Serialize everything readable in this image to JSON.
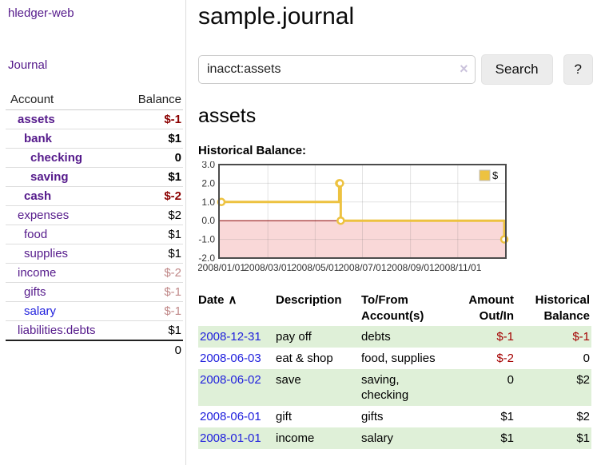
{
  "sidebar": {
    "brand": "hledger-web",
    "journal_link": "Journal",
    "accounts": {
      "header": {
        "account": "Account",
        "balance": "Balance"
      },
      "rows": [
        {
          "name": "assets",
          "indent": 1,
          "bold": true,
          "blue": false,
          "balance": "$-1",
          "neg": "strong",
          "last": false
        },
        {
          "name": "bank",
          "indent": 2,
          "bold": true,
          "blue": false,
          "balance": "$1",
          "neg": null,
          "last": false
        },
        {
          "name": "checking",
          "indent": 3,
          "bold": true,
          "blue": false,
          "balance": "0",
          "neg": null,
          "last": false
        },
        {
          "name": "saving",
          "indent": 3,
          "bold": true,
          "blue": false,
          "balance": "$1",
          "neg": null,
          "last": false
        },
        {
          "name": "cash",
          "indent": 2,
          "bold": true,
          "blue": false,
          "balance": "$-2",
          "neg": "strong",
          "last": false
        },
        {
          "name": "expenses",
          "indent": 1,
          "bold": false,
          "blue": false,
          "balance": "$2",
          "neg": null,
          "last": false
        },
        {
          "name": "food",
          "indent": 2,
          "bold": false,
          "blue": false,
          "balance": "$1",
          "neg": null,
          "last": false
        },
        {
          "name": "supplies",
          "indent": 2,
          "bold": false,
          "blue": false,
          "balance": "$1",
          "neg": null,
          "last": false
        },
        {
          "name": "income",
          "indent": 1,
          "bold": false,
          "blue": false,
          "balance": "$-2",
          "neg": "light",
          "last": false
        },
        {
          "name": "gifts",
          "indent": 2,
          "bold": false,
          "blue": false,
          "balance": "$-1",
          "neg": "light",
          "last": false
        },
        {
          "name": "salary",
          "indent": 2,
          "bold": false,
          "blue": true,
          "balance": "$-1",
          "neg": "light",
          "last": false
        },
        {
          "name": "liabilities:debts",
          "indent": 1,
          "bold": false,
          "blue": false,
          "balance": "$1",
          "neg": null,
          "last": true
        }
      ],
      "total": "0"
    }
  },
  "main": {
    "title": "sample.journal",
    "search": {
      "value": "inacct:assets",
      "clear_icon": "×",
      "button_label": "Search",
      "help_label": "?"
    },
    "account_heading": "assets",
    "chart_label": "Historical Balance:"
  },
  "register": {
    "headers": [
      {
        "line1": "Date",
        "line2": "",
        "sort_icon": "∧",
        "align": "left"
      },
      {
        "line1": "Description",
        "line2": "",
        "sort_icon": "",
        "align": "left"
      },
      {
        "line1": "To/From",
        "line2": "Account(s)",
        "sort_icon": "",
        "align": "left"
      },
      {
        "line1": "Amount",
        "line2": "Out/In",
        "sort_icon": "",
        "align": "right"
      },
      {
        "line1": "Historical",
        "line2": "Balance",
        "sort_icon": "",
        "align": "right"
      }
    ],
    "rows": [
      {
        "date": "2008-12-31",
        "description": "pay off",
        "accounts": "debts",
        "amount": "$-1",
        "amount_neg": true,
        "balance": "$-1",
        "balance_neg": true,
        "stripe": true
      },
      {
        "date": "2008-06-03",
        "description": "eat & shop",
        "accounts": "food, supplies",
        "amount": "$-2",
        "amount_neg": true,
        "balance": "0",
        "balance_neg": false,
        "stripe": false
      },
      {
        "date": "2008-06-02",
        "description": "save",
        "accounts": "saving,\nchecking",
        "amount": "0",
        "amount_neg": false,
        "balance": "$2",
        "balance_neg": false,
        "stripe": true
      },
      {
        "date": "2008-06-01",
        "description": "gift",
        "accounts": "gifts",
        "amount": "$1",
        "amount_neg": false,
        "balance": "$2",
        "balance_neg": false,
        "stripe": false
      },
      {
        "date": "2008-01-01",
        "description": "income",
        "accounts": "salary",
        "amount": "$1",
        "amount_neg": false,
        "balance": "$1",
        "balance_neg": false,
        "stripe": true
      }
    ]
  },
  "chart_data": {
    "type": "line",
    "step": true,
    "title": "Historical Balance:",
    "legend": [
      "$"
    ],
    "legend_position": "top-right",
    "grid": true,
    "points": [
      [
        "2008-01-01",
        1
      ],
      [
        "2008-06-01",
        2
      ],
      [
        "2008-06-02",
        2
      ],
      [
        "2008-06-03",
        0
      ],
      [
        "2008-12-31",
        -1
      ]
    ],
    "xlim": [
      "2008-01-01",
      "2008-12-31"
    ],
    "ylim": [
      -2,
      3
    ],
    "ytick_labels": [
      "3.0",
      "2.0",
      "1.0",
      "0.0",
      "-1.0",
      "-2.0"
    ],
    "xtick_dates": [
      "2008-01-01",
      "2008-03-01",
      "2008-05-01",
      "2008-07-01",
      "2008-09-01",
      "2008-11-01"
    ],
    "xtick_labels": [
      "2008/01/01",
      "2008/03/01",
      "2008/05/01",
      "2008/07/01",
      "2008/09/01",
      "2008/11/01"
    ],
    "colors": {
      "line": "#edc240",
      "marker_fill": "#ffffff",
      "negative_region": "#f9d8d8",
      "zero_line": "#8b0000",
      "border": "#4c4c4c",
      "axis_text": "#333333"
    }
  }
}
